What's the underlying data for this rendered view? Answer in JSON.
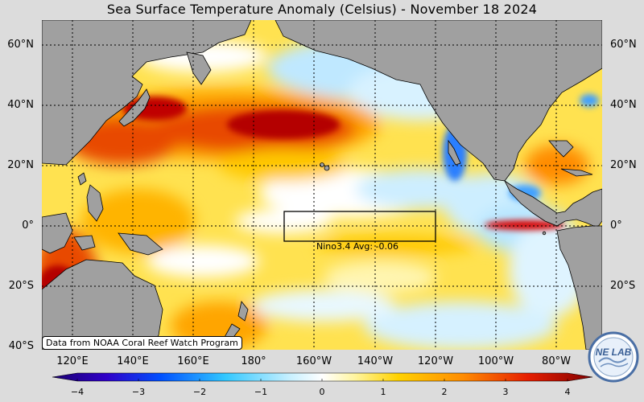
{
  "title": "Sea Surface Temperature Anomaly (Celsius) - November 18 2024",
  "lat_labels": [
    "60°N",
    "40°N",
    "20°N",
    "0°",
    "20°S",
    "40°S"
  ],
  "lon_labels": [
    "120°E",
    "140°E",
    "160°E",
    "180°",
    "160°W",
    "140°W",
    "120°W",
    "100°W",
    "80°W"
  ],
  "source_note": "Data from NOAA Coral Reef Watch Program",
  "nino_box_label": "Nino3.4 Avg: -0.06",
  "colorbar": {
    "ticks": [
      "−4",
      "−3",
      "−2",
      "−1",
      "0",
      "1",
      "2",
      "3",
      "4"
    ],
    "range": [
      -4,
      4
    ]
  },
  "logo_text": "NE LAB",
  "colors": {
    "background": "#dcdcdc",
    "land": "#a0a0a0",
    "strong_warm": "#b40000",
    "warm": "#ff8c00",
    "mild_warm": "#ffd700",
    "neutral": "#ffffff",
    "cool": "#87cefa",
    "strong_cool": "#0000b4"
  }
}
